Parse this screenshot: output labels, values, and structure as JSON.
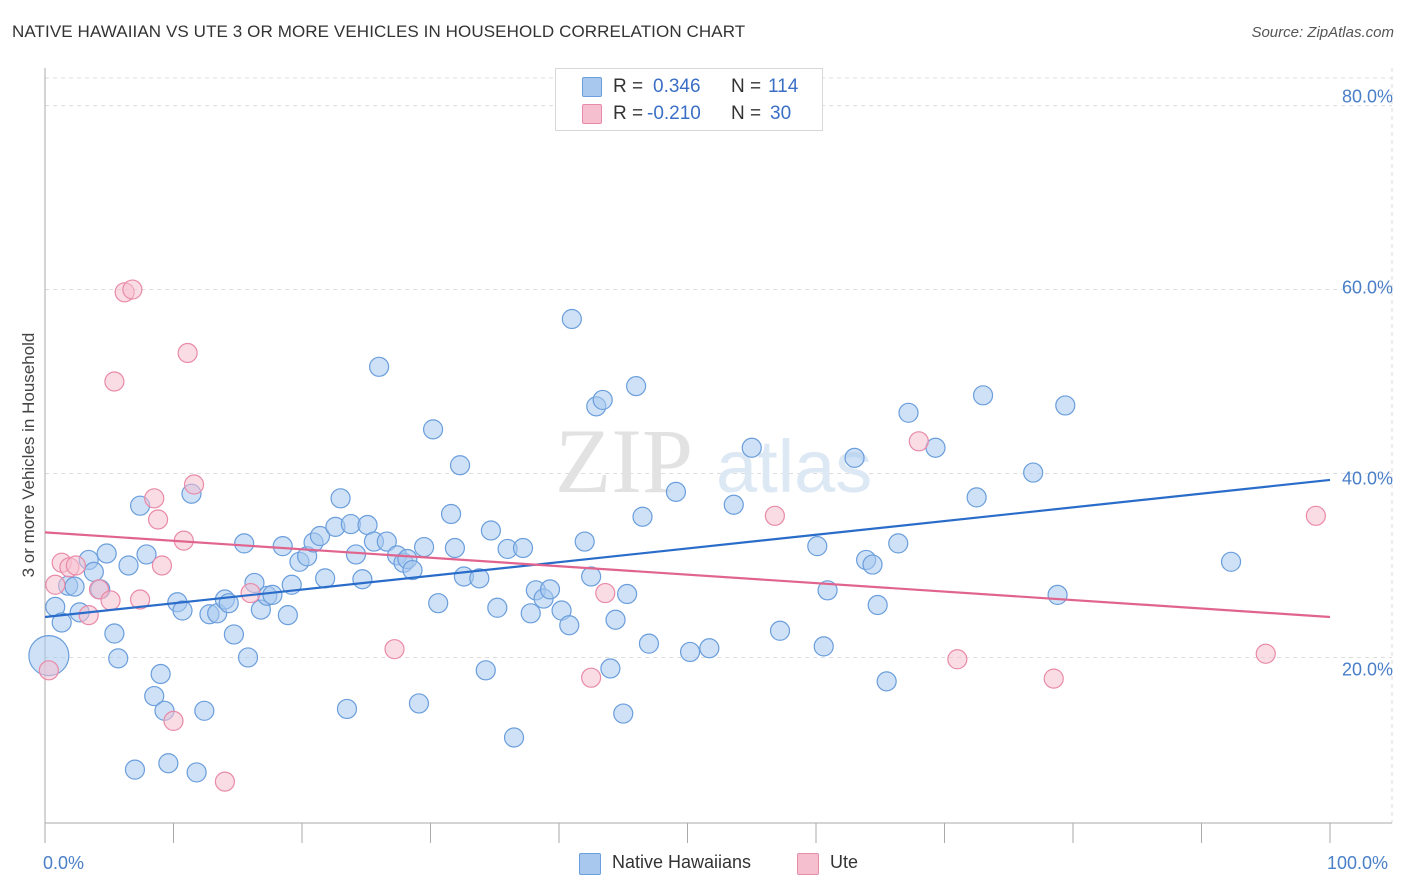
{
  "header": {
    "title": "NATIVE HAWAIIAN VS UTE 3 OR MORE VEHICLES IN HOUSEHOLD CORRELATION CHART",
    "source": "Source: ZipAtlas.com"
  },
  "watermark": {
    "part1": "ZIP",
    "part2": "atlas"
  },
  "colors": {
    "blue_fill": "#a8c8ee",
    "blue_stroke": "#6a9edc",
    "blue_line": "#2a6cc9",
    "pink_fill": "#f6bfd0",
    "pink_stroke": "#e98aa8",
    "pink_line": "#e0648e",
    "tick_text": "#4a7fc8",
    "grid": "#dddddd"
  },
  "stats": {
    "blue": {
      "r_label": "R =",
      "r_value": "0.346",
      "n_label": "N =",
      "n_value": "114"
    },
    "pink": {
      "r_label": "R =",
      "r_value": "-0.210",
      "n_label": "N =",
      "n_value": "30"
    }
  },
  "chart_data": {
    "type": "scatter",
    "title": "NATIVE HAWAIIAN VS UTE 3 OR MORE VEHICLES IN HOUSEHOLD CORRELATION CHART",
    "xlabel": "",
    "ylabel": "3 or more Vehicles in Household",
    "xlim": [
      0,
      100
    ],
    "ylim": [
      2,
      83
    ],
    "x_tick_labels": [
      "0.0%",
      "100.0%"
    ],
    "y_ticks": [
      {
        "value": 20,
        "label": "20.0%"
      },
      {
        "value": 40,
        "label": "40.0%"
      },
      {
        "value": 60,
        "label": "60.0%"
      },
      {
        "value": 80,
        "label": "80.0%"
      }
    ],
    "grid": true,
    "legend_position": "bottom-center",
    "series": [
      {
        "name": "Native Hawaiians",
        "color": "#a8c8ee",
        "trend": {
          "x": [
            0,
            100
          ],
          "y": [
            24.4,
            39.3
          ]
        },
        "points": [
          [
            0.3,
            20.2
          ],
          [
            0.8,
            25.5
          ],
          [
            1.3,
            23.8
          ],
          [
            1.8,
            27.8
          ],
          [
            2.3,
            27.7
          ],
          [
            2.7,
            24.9
          ],
          [
            3.4,
            30.6
          ],
          [
            3.8,
            29.3
          ],
          [
            4.3,
            27.4
          ],
          [
            4.8,
            31.3
          ],
          [
            5.4,
            22.6
          ],
          [
            5.7,
            19.9
          ],
          [
            6.5,
            30.0
          ],
          [
            7.0,
            7.8
          ],
          [
            7.4,
            36.5
          ],
          [
            7.9,
            31.2
          ],
          [
            8.5,
            15.8
          ],
          [
            9.0,
            18.2
          ],
          [
            9.3,
            14.2
          ],
          [
            9.6,
            8.5
          ],
          [
            10.3,
            26.0
          ],
          [
            10.7,
            25.1
          ],
          [
            11.4,
            37.8
          ],
          [
            11.8,
            7.5
          ],
          [
            12.4,
            14.2
          ],
          [
            12.8,
            24.7
          ],
          [
            13.4,
            24.8
          ],
          [
            14.0,
            26.3
          ],
          [
            14.3,
            25.9
          ],
          [
            14.7,
            22.5
          ],
          [
            15.5,
            32.4
          ],
          [
            15.8,
            20.0
          ],
          [
            16.3,
            28.1
          ],
          [
            16.8,
            25.2
          ],
          [
            17.3,
            26.7
          ],
          [
            17.7,
            26.8
          ],
          [
            18.5,
            32.1
          ],
          [
            18.9,
            24.6
          ],
          [
            19.2,
            27.9
          ],
          [
            19.8,
            30.4
          ],
          [
            20.4,
            31.0
          ],
          [
            20.9,
            32.5
          ],
          [
            21.4,
            33.2
          ],
          [
            21.8,
            28.6
          ],
          [
            22.6,
            34.2
          ],
          [
            23.0,
            37.3
          ],
          [
            23.5,
            14.4
          ],
          [
            23.8,
            34.5
          ],
          [
            24.2,
            31.2
          ],
          [
            24.7,
            28.5
          ],
          [
            25.1,
            34.4
          ],
          [
            25.6,
            32.6
          ],
          [
            26.0,
            51.6
          ],
          [
            26.6,
            32.6
          ],
          [
            27.4,
            31.1
          ],
          [
            27.9,
            30.3
          ],
          [
            28.2,
            30.7
          ],
          [
            28.6,
            29.5
          ],
          [
            29.1,
            15.0
          ],
          [
            29.5,
            32.0
          ],
          [
            30.2,
            44.8
          ],
          [
            30.6,
            25.9
          ],
          [
            31.6,
            35.6
          ],
          [
            31.9,
            31.9
          ],
          [
            32.3,
            40.9
          ],
          [
            32.6,
            28.8
          ],
          [
            33.8,
            28.6
          ],
          [
            34.3,
            18.6
          ],
          [
            34.7,
            33.8
          ],
          [
            35.2,
            25.4
          ],
          [
            36.0,
            31.8
          ],
          [
            36.5,
            11.3
          ],
          [
            37.2,
            31.9
          ],
          [
            37.8,
            24.8
          ],
          [
            38.2,
            27.3
          ],
          [
            38.8,
            26.4
          ],
          [
            39.3,
            27.4
          ],
          [
            40.2,
            25.1
          ],
          [
            41.0,
            56.8
          ],
          [
            40.8,
            23.5
          ],
          [
            42.0,
            32.6
          ],
          [
            42.5,
            28.8
          ],
          [
            42.9,
            47.3
          ],
          [
            43.4,
            48.0
          ],
          [
            44.0,
            18.8
          ],
          [
            44.4,
            24.1
          ],
          [
            45.0,
            13.9
          ],
          [
            45.3,
            26.9
          ],
          [
            46.0,
            49.5
          ],
          [
            46.5,
            35.3
          ],
          [
            47.0,
            21.5
          ],
          [
            49.1,
            38.0
          ],
          [
            50.2,
            20.6
          ],
          [
            51.7,
            21.0
          ],
          [
            53.6,
            36.6
          ],
          [
            55.0,
            42.8
          ],
          [
            57.2,
            22.9
          ],
          [
            60.1,
            32.1
          ],
          [
            60.6,
            21.2
          ],
          [
            60.9,
            27.3
          ],
          [
            63.0,
            41.7
          ],
          [
            63.9,
            30.6
          ],
          [
            64.4,
            30.1
          ],
          [
            64.8,
            25.7
          ],
          [
            65.5,
            17.4
          ],
          [
            66.4,
            32.4
          ],
          [
            67.2,
            46.6
          ],
          [
            69.3,
            42.8
          ],
          [
            72.5,
            37.4
          ],
          [
            73.0,
            48.5
          ],
          [
            76.9,
            40.1
          ],
          [
            78.8,
            26.8
          ],
          [
            79.4,
            47.4
          ],
          [
            92.3,
            30.4
          ]
        ]
      },
      {
        "name": "Ute",
        "color": "#f6bfd0",
        "trend": {
          "x": [
            0,
            100
          ],
          "y": [
            33.6,
            24.4
          ]
        },
        "points": [
          [
            0.3,
            18.6
          ],
          [
            0.8,
            27.9
          ],
          [
            1.3,
            30.3
          ],
          [
            1.9,
            29.8
          ],
          [
            2.4,
            30.0
          ],
          [
            3.4,
            24.6
          ],
          [
            4.2,
            27.4
          ],
          [
            5.1,
            26.2
          ],
          [
            5.4,
            50.0
          ],
          [
            6.2,
            59.7
          ],
          [
            6.8,
            60.0
          ],
          [
            7.4,
            26.3
          ],
          [
            8.5,
            37.3
          ],
          [
            8.8,
            35.0
          ],
          [
            9.1,
            30.0
          ],
          [
            10.0,
            13.1
          ],
          [
            10.8,
            32.7
          ],
          [
            11.1,
            53.1
          ],
          [
            11.6,
            38.8
          ],
          [
            14.0,
            6.5
          ],
          [
            16.0,
            27.0
          ],
          [
            27.2,
            20.9
          ],
          [
            42.5,
            17.8
          ],
          [
            43.6,
            27.0
          ],
          [
            56.8,
            35.4
          ],
          [
            68.0,
            43.5
          ],
          [
            71.0,
            19.8
          ],
          [
            78.5,
            17.7
          ],
          [
            95.0,
            20.4
          ],
          [
            98.9,
            35.4
          ]
        ]
      }
    ]
  },
  "legend": {
    "items": [
      "Native Hawaiians",
      "Ute"
    ]
  }
}
